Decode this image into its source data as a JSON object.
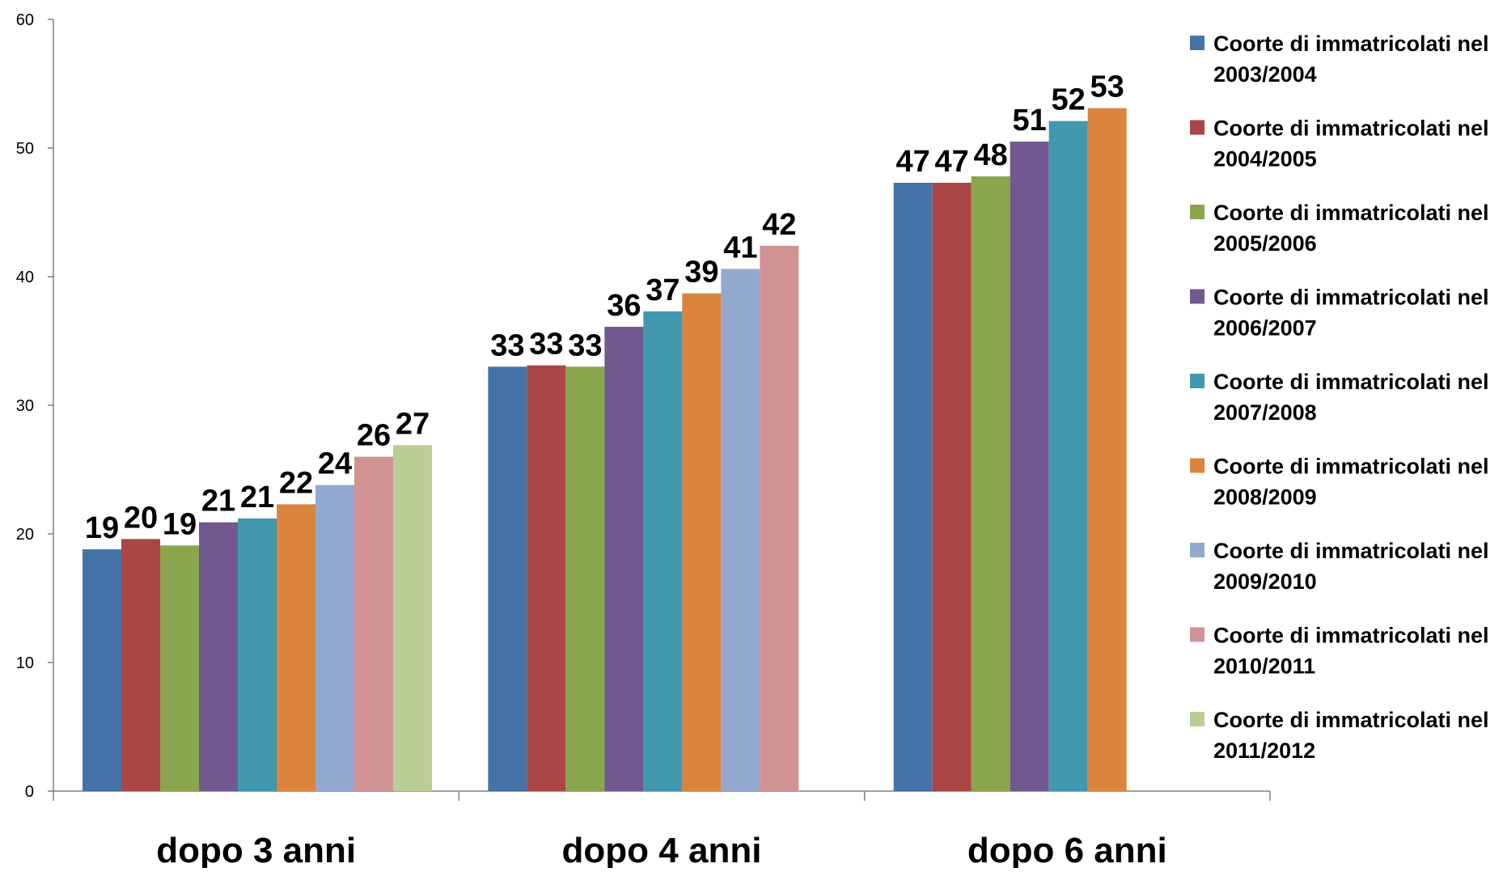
{
  "chart_data": {
    "type": "bar",
    "title": "",
    "xlabel": "",
    "ylabel": "",
    "ylim": [
      0,
      60
    ],
    "yticks": [
      0,
      10,
      20,
      30,
      40,
      50,
      60
    ],
    "grid": false,
    "legend_position": "right",
    "categories": [
      "dopo 3 anni",
      "dopo 4 anni",
      "dopo 6 anni"
    ],
    "series": [
      {
        "name": "Coorte di immatricolati nel 2003/2004",
        "color": "#4573A7",
        "values": [
          18.8,
          33.0,
          47.3
        ],
        "labels": [
          "19",
          "33",
          "47"
        ]
      },
      {
        "name": "Coorte di immatricolati nel 2004/2005",
        "color": "#AA4643",
        "values": [
          19.6,
          33.1,
          47.3
        ],
        "labels": [
          "20",
          "33",
          "47"
        ]
      },
      {
        "name": "Coorte di immatricolati nel 2005/2006",
        "color": "#89A54E",
        "values": [
          19.1,
          33.0,
          47.8
        ],
        "labels": [
          "19",
          "33",
          "48"
        ]
      },
      {
        "name": "Coorte di immatricolati nel 2006/2007",
        "color": "#71588F",
        "values": [
          20.9,
          36.1,
          50.5
        ],
        "labels": [
          "21",
          "36",
          "51"
        ]
      },
      {
        "name": "Coorte di immatricolati nel 2007/2008",
        "color": "#4198AF",
        "values": [
          21.2,
          37.3,
          52.1
        ],
        "labels": [
          "21",
          "37",
          "52"
        ]
      },
      {
        "name": "Coorte di immatricolati nel 2008/2009",
        "color": "#DB843D",
        "values": [
          22.3,
          38.7,
          53.1
        ],
        "labels": [
          "22",
          "39",
          "53"
        ]
      },
      {
        "name": "Coorte di immatricolati nel 2009/2010",
        "color": "#93A9CF",
        "values": [
          23.8,
          40.6,
          null
        ],
        "labels": [
          "24",
          "41",
          null
        ]
      },
      {
        "name": "Coorte di immatricolati nel 2010/2011",
        "color": "#D19392",
        "values": [
          26.0,
          42.4,
          null
        ],
        "labels": [
          "26",
          "42",
          null
        ]
      },
      {
        "name": "Coorte di immatricolati nel 2011/2012",
        "color": "#B9CD96",
        "values": [
          26.9,
          null,
          null
        ],
        "labels": [
          "27",
          null,
          null
        ]
      }
    ]
  }
}
